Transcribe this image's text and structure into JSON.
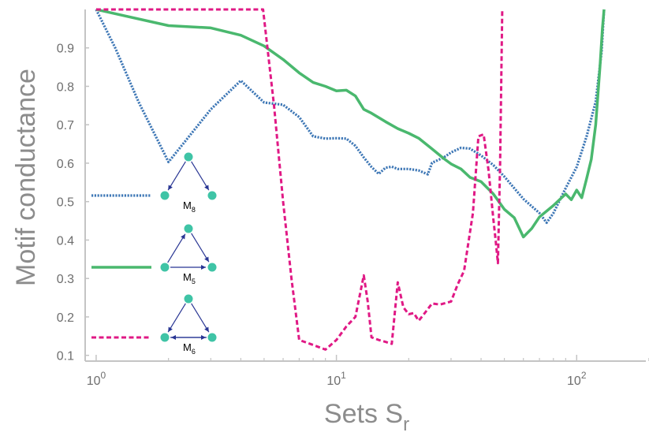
{
  "chart_data": {
    "type": "line",
    "xlabel_main": "Sets S",
    "xlabel_sub": "r",
    "ylabel": "Motif conductance",
    "x_scale": "log",
    "xlim": [
      0.9,
      200
    ],
    "ylim": [
      0.085,
      1.0
    ],
    "x_ticks": [
      {
        "value": 1,
        "base": "10",
        "exp": "0"
      },
      {
        "value": 10,
        "base": "10",
        "exp": "1"
      },
      {
        "value": 100,
        "base": "10",
        "exp": "2"
      }
    ],
    "y_ticks": [
      {
        "value": 0.1,
        "label": "0.1"
      },
      {
        "value": 0.2,
        "label": "0.2"
      },
      {
        "value": 0.3,
        "label": "0.3"
      },
      {
        "value": 0.4,
        "label": "0.4"
      },
      {
        "value": 0.5,
        "label": "0.5"
      },
      {
        "value": 0.6,
        "label": "0.6"
      },
      {
        "value": 0.7,
        "label": "0.7"
      },
      {
        "value": 0.8,
        "label": "0.8"
      },
      {
        "value": 0.9,
        "label": "0.9"
      }
    ],
    "series": [
      {
        "legend": "M8",
        "legend_main": "M",
        "legend_sub": "8",
        "color": "#3f78b6",
        "style": "dotted",
        "points": [
          [
            1,
            1.0
          ],
          [
            1.2,
            0.9
          ],
          [
            1.5,
            0.76
          ],
          [
            2,
            0.603
          ],
          [
            3,
            0.74
          ],
          [
            4,
            0.815
          ],
          [
            5,
            0.758
          ],
          [
            6,
            0.752
          ],
          [
            7,
            0.72
          ],
          [
            8,
            0.67
          ],
          [
            9,
            0.664
          ],
          [
            10,
            0.665
          ],
          [
            11,
            0.664
          ],
          [
            12,
            0.645
          ],
          [
            13,
            0.615
          ],
          [
            14,
            0.59
          ],
          [
            15,
            0.572
          ],
          [
            16,
            0.588
          ],
          [
            17,
            0.591
          ],
          [
            18,
            0.585
          ],
          [
            20,
            0.585
          ],
          [
            22,
            0.581
          ],
          [
            24,
            0.571
          ],
          [
            25,
            0.601
          ],
          [
            28,
            0.615
          ],
          [
            30,
            0.628
          ],
          [
            33,
            0.64
          ],
          [
            36,
            0.638
          ],
          [
            40,
            0.62
          ],
          [
            45,
            0.595
          ],
          [
            50,
            0.565
          ],
          [
            60,
            0.507
          ],
          [
            70,
            0.47
          ],
          [
            75,
            0.445
          ],
          [
            80,
            0.47
          ],
          [
            90,
            0.535
          ],
          [
            100,
            0.59
          ],
          [
            110,
            0.67
          ],
          [
            120,
            0.76
          ],
          [
            127,
            0.89
          ],
          [
            130,
            1.0
          ]
        ]
      },
      {
        "legend": "M5",
        "legend_main": "M",
        "legend_sub": "5",
        "color": "#4ab86e",
        "style": "solid",
        "points": [
          [
            1,
            1.0
          ],
          [
            2,
            0.958
          ],
          [
            3,
            0.952
          ],
          [
            4,
            0.933
          ],
          [
            5,
            0.905
          ],
          [
            6,
            0.87
          ],
          [
            7,
            0.835
          ],
          [
            8,
            0.81
          ],
          [
            9,
            0.8
          ],
          [
            10,
            0.788
          ],
          [
            11,
            0.79
          ],
          [
            12,
            0.775
          ],
          [
            13,
            0.74
          ],
          [
            14,
            0.73
          ],
          [
            16,
            0.708
          ],
          [
            18,
            0.69
          ],
          [
            20,
            0.678
          ],
          [
            22,
            0.665
          ],
          [
            25,
            0.637
          ],
          [
            28,
            0.612
          ],
          [
            30,
            0.598
          ],
          [
            33,
            0.585
          ],
          [
            36,
            0.563
          ],
          [
            40,
            0.552
          ],
          [
            45,
            0.52
          ],
          [
            50,
            0.48
          ],
          [
            55,
            0.458
          ],
          [
            60,
            0.408
          ],
          [
            65,
            0.43
          ],
          [
            70,
            0.46
          ],
          [
            80,
            0.49
          ],
          [
            90,
            0.52
          ],
          [
            95,
            0.505
          ],
          [
            100,
            0.53
          ],
          [
            105,
            0.51
          ],
          [
            110,
            0.56
          ],
          [
            115,
            0.61
          ],
          [
            120,
            0.7
          ],
          [
            125,
            0.85
          ],
          [
            128,
            0.95
          ],
          [
            130,
            1.0
          ]
        ]
      },
      {
        "legend": "M6",
        "legend_main": "M",
        "legend_sub": "6",
        "color": "#e01985",
        "style": "dashed",
        "points": [
          [
            1,
            1.0
          ],
          [
            4.95,
            1.0
          ],
          [
            5.5,
            0.75
          ],
          [
            6,
            0.5
          ],
          [
            6.5,
            0.3
          ],
          [
            7,
            0.14
          ],
          [
            8,
            0.127
          ],
          [
            9,
            0.115
          ],
          [
            10,
            0.14
          ],
          [
            11,
            0.175
          ],
          [
            12,
            0.2
          ],
          [
            13,
            0.308
          ],
          [
            13.5,
            0.24
          ],
          [
            14,
            0.147
          ],
          [
            15,
            0.14
          ],
          [
            16,
            0.135
          ],
          [
            17,
            0.13
          ],
          [
            18,
            0.29
          ],
          [
            19,
            0.225
          ],
          [
            20,
            0.207
          ],
          [
            21,
            0.21
          ],
          [
            22,
            0.19
          ],
          [
            23,
            0.205
          ],
          [
            25,
            0.235
          ],
          [
            27,
            0.232
          ],
          [
            30,
            0.24
          ],
          [
            32,
            0.285
          ],
          [
            34,
            0.32
          ],
          [
            37,
            0.47
          ],
          [
            39,
            0.67
          ],
          [
            41,
            0.675
          ],
          [
            43,
            0.58
          ],
          [
            45,
            0.455
          ],
          [
            46,
            0.4
          ],
          [
            47,
            0.34
          ],
          [
            48,
            0.6
          ],
          [
            49,
            1.0
          ]
        ]
      }
    ]
  }
}
